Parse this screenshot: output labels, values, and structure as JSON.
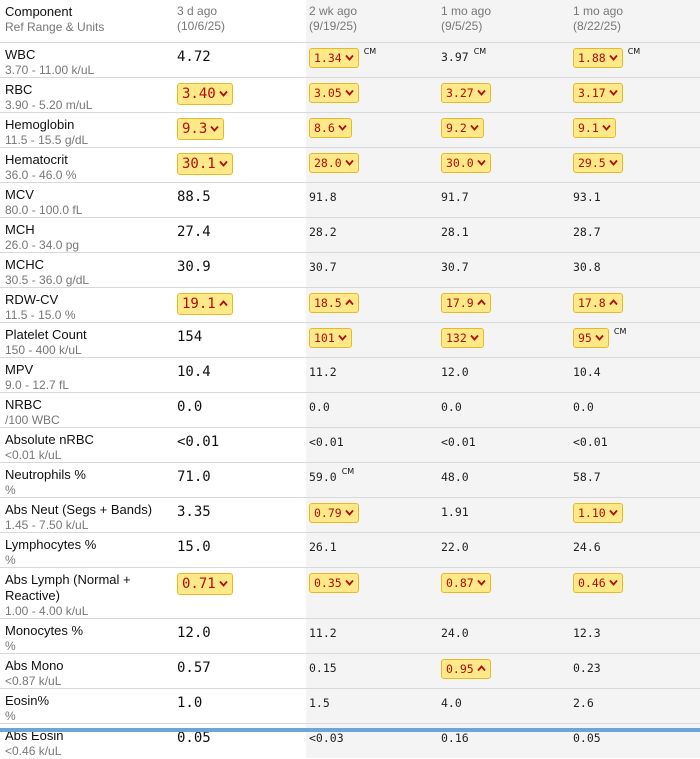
{
  "header": {
    "component_label": "Component",
    "ref_label": "Ref Range & Units",
    "columns": [
      {
        "ago": "3 d ago",
        "date": "(10/6/25)"
      },
      {
        "ago": "2 wk ago",
        "date": "(9/19/25)"
      },
      {
        "ago": "1 mo ago",
        "date": "(9/5/25)"
      },
      {
        "ago": "1 mo ago",
        "date": "(8/22/25)"
      }
    ]
  },
  "flag_icons": {
    "low": "arrow-down-icon",
    "high": "arrow-up-icon"
  },
  "colors": {
    "flag_bg": "#fde987",
    "flag_border": "#e7b92a",
    "flag_text": "#b10d0d",
    "shade": "#f4f4f4"
  },
  "rows": [
    {
      "name": "WBC",
      "ref": "3.70 - 11.00 k/uL",
      "h": 34,
      "values": [
        {
          "v": "4.72"
        },
        {
          "v": "1.34",
          "flag": "low",
          "cm": "CM"
        },
        {
          "v": "3.97",
          "cm": "CM"
        },
        {
          "v": "1.88",
          "flag": "low",
          "cm": "CM"
        }
      ]
    },
    {
      "name": "RBC",
      "ref": "3.90 - 5.20 m/uL",
      "h": 34,
      "values": [
        {
          "v": "3.40",
          "flag": "low"
        },
        {
          "v": "3.05",
          "flag": "low"
        },
        {
          "v": "3.27",
          "flag": "low"
        },
        {
          "v": "3.17",
          "flag": "low"
        }
      ]
    },
    {
      "name": "Hemoglobin",
      "ref": "11.5 - 15.5 g/dL",
      "h": 34,
      "values": [
        {
          "v": "9.3",
          "flag": "low"
        },
        {
          "v": "8.6",
          "flag": "low"
        },
        {
          "v": "9.2",
          "flag": "low"
        },
        {
          "v": "9.1",
          "flag": "low"
        }
      ]
    },
    {
      "name": "Hematocrit",
      "ref": "36.0 - 46.0 %",
      "h": 34,
      "values": [
        {
          "v": "30.1",
          "flag": "low"
        },
        {
          "v": "28.0",
          "flag": "low"
        },
        {
          "v": "30.0",
          "flag": "low"
        },
        {
          "v": "29.5",
          "flag": "low"
        }
      ]
    },
    {
      "name": "MCV",
      "ref": "80.0 - 100.0 fL",
      "h": 34,
      "values": [
        {
          "v": "88.5"
        },
        {
          "v": "91.8"
        },
        {
          "v": "91.7"
        },
        {
          "v": "93.1"
        }
      ]
    },
    {
      "name": "MCH",
      "ref": "26.0 - 34.0 pg",
      "h": 34,
      "values": [
        {
          "v": "27.4"
        },
        {
          "v": "28.2"
        },
        {
          "v": "28.1"
        },
        {
          "v": "28.7"
        }
      ]
    },
    {
      "name": "MCHC",
      "ref": "30.5 - 36.0 g/dL",
      "h": 34,
      "values": [
        {
          "v": "30.9"
        },
        {
          "v": "30.7"
        },
        {
          "v": "30.7"
        },
        {
          "v": "30.8"
        }
      ]
    },
    {
      "name": "RDW-CV",
      "ref": "11.5 - 15.0 %",
      "h": 34,
      "values": [
        {
          "v": "19.1",
          "flag": "high"
        },
        {
          "v": "18.5",
          "flag": "high"
        },
        {
          "v": "17.9",
          "flag": "high"
        },
        {
          "v": "17.8",
          "flag": "high"
        }
      ]
    },
    {
      "name": "Platelet Count",
      "ref": "150 - 400 k/uL",
      "h": 34,
      "values": [
        {
          "v": "154"
        },
        {
          "v": "101",
          "flag": "low"
        },
        {
          "v": "132",
          "flag": "low"
        },
        {
          "v": "95",
          "flag": "low",
          "cm": "CM"
        }
      ]
    },
    {
      "name": "MPV",
      "ref": "9.0 - 12.7 fL",
      "h": 34,
      "values": [
        {
          "v": "10.4"
        },
        {
          "v": "11.2"
        },
        {
          "v": "12.0"
        },
        {
          "v": "10.4"
        }
      ]
    },
    {
      "name": "NRBC",
      "ref": "/100 WBC",
      "h": 34,
      "values": [
        {
          "v": "0.0"
        },
        {
          "v": "0.0"
        },
        {
          "v": "0.0"
        },
        {
          "v": "0.0"
        }
      ]
    },
    {
      "name": "Absolute nRBC",
      "ref": "<0.01 k/uL",
      "h": 34,
      "values": [
        {
          "v": "<0.01"
        },
        {
          "v": "<0.01"
        },
        {
          "v": "<0.01"
        },
        {
          "v": "<0.01"
        }
      ]
    },
    {
      "name": "Neutrophils %",
      "ref": "%",
      "h": 34,
      "values": [
        {
          "v": "71.0"
        },
        {
          "v": "59.0",
          "cm": "CM"
        },
        {
          "v": "48.0"
        },
        {
          "v": "58.7"
        }
      ]
    },
    {
      "name": "Abs Neut (Segs + Bands)",
      "ref": "1.45 - 7.50 k/uL",
      "h": 34,
      "values": [
        {
          "v": "3.35"
        },
        {
          "v": "0.79",
          "flag": "low"
        },
        {
          "v": "1.91"
        },
        {
          "v": "1.10",
          "flag": "low"
        }
      ]
    },
    {
      "name": "Lymphocytes %",
      "ref": "%",
      "h": 34,
      "values": [
        {
          "v": "15.0"
        },
        {
          "v": "26.1"
        },
        {
          "v": "22.0"
        },
        {
          "v": "24.6"
        }
      ]
    },
    {
      "name": "Abs Lymph (Normal + Reactive)",
      "ref": "1.00 - 4.00 k/uL",
      "h": 50,
      "values": [
        {
          "v": "0.71",
          "flag": "low"
        },
        {
          "v": "0.35",
          "flag": "low"
        },
        {
          "v": "0.87",
          "flag": "low"
        },
        {
          "v": "0.46",
          "flag": "low"
        }
      ]
    },
    {
      "name": "Monocytes %",
      "ref": "%",
      "h": 34,
      "values": [
        {
          "v": "12.0"
        },
        {
          "v": "11.2"
        },
        {
          "v": "24.0"
        },
        {
          "v": "12.3"
        }
      ]
    },
    {
      "name": "Abs Mono",
      "ref": "<0.87 k/uL",
      "h": 34,
      "values": [
        {
          "v": "0.57"
        },
        {
          "v": "0.15"
        },
        {
          "v": "0.95",
          "flag": "high"
        },
        {
          "v": "0.23"
        }
      ]
    },
    {
      "name": "Eosin%",
      "ref": "%",
      "h": 34,
      "values": [
        {
          "v": "1.0"
        },
        {
          "v": "1.5"
        },
        {
          "v": "4.0"
        },
        {
          "v": "2.6"
        }
      ]
    },
    {
      "name": "Abs Eosin",
      "ref": "<0.46 k/uL",
      "h": 34,
      "values": [
        {
          "v": "0.05"
        },
        {
          "v": "<0.03"
        },
        {
          "v": "0.16"
        },
        {
          "v": "0.05"
        }
      ]
    }
  ]
}
